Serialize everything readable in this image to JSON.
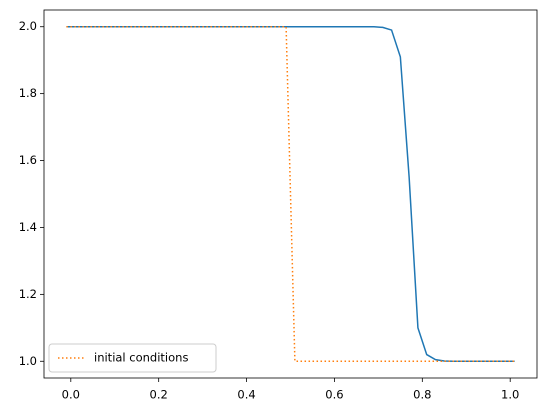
{
  "chart_data": {
    "type": "line",
    "x": [
      -0.01,
      0.01,
      0.03,
      0.05,
      0.07,
      0.09,
      0.11,
      0.13,
      0.15,
      0.17,
      0.19,
      0.21,
      0.23,
      0.25,
      0.27,
      0.29,
      0.31,
      0.33,
      0.35,
      0.37,
      0.39,
      0.41,
      0.43,
      0.45,
      0.47,
      0.49,
      0.51,
      0.53,
      0.55,
      0.57,
      0.59,
      0.61,
      0.63,
      0.65,
      0.67,
      0.69,
      0.71,
      0.73,
      0.75,
      0.77,
      0.79,
      0.81,
      0.83,
      0.85,
      0.87,
      0.89,
      0.91,
      0.93,
      0.95,
      0.97,
      0.99,
      1.01
    ],
    "series": [
      {
        "color": "#1f77b4",
        "linestyle": "solid",
        "values": [
          2,
          2,
          2,
          2,
          2,
          2,
          2,
          2,
          2,
          2,
          2,
          2,
          2,
          2,
          2,
          2,
          2,
          2,
          2,
          2,
          2,
          2,
          2,
          2,
          2,
          2,
          2,
          2,
          2,
          2,
          2,
          2,
          2,
          2,
          2,
          2,
          1.998,
          1.99,
          1.91,
          1.55,
          1.1,
          1.02,
          1.005,
          1.001,
          1,
          1,
          1,
          1,
          1,
          1,
          1,
          1
        ]
      },
      {
        "name": "initial conditions",
        "color": "#ff7f0e",
        "linestyle": "dotted",
        "values": [
          2,
          2,
          2,
          2,
          2,
          2,
          2,
          2,
          2,
          2,
          2,
          2,
          2,
          2,
          2,
          2,
          2,
          2,
          2,
          2,
          2,
          2,
          2,
          2,
          2,
          2,
          1,
          1,
          1,
          1,
          1,
          1,
          1,
          1,
          1,
          1,
          1,
          1,
          1,
          1,
          1,
          1,
          1,
          1,
          1,
          1,
          1,
          1,
          1,
          1,
          1,
          1
        ]
      }
    ],
    "xlim": [
      -0.061,
      1.061
    ],
    "xticks": [
      {
        "value": 0,
        "label": "0.0"
      },
      {
        "value": 0.2,
        "label": "0.2"
      },
      {
        "value": 0.4,
        "label": "0.4"
      },
      {
        "value": 0.6,
        "label": "0.6"
      },
      {
        "value": 0.8,
        "label": "0.8"
      },
      {
        "value": 1,
        "label": "1.0"
      }
    ],
    "ylim": [
      0.95,
      2.05
    ],
    "yticks": [
      {
        "value": 1,
        "label": "1.0"
      },
      {
        "value": 1.2,
        "label": "1.2"
      },
      {
        "value": 1.4,
        "label": "1.4"
      },
      {
        "value": 1.6,
        "label": "1.6"
      },
      {
        "value": 1.8,
        "label": "1.8"
      },
      {
        "value": 2,
        "label": "2.0"
      }
    ],
    "grid": false,
    "legend": "lower left"
  }
}
